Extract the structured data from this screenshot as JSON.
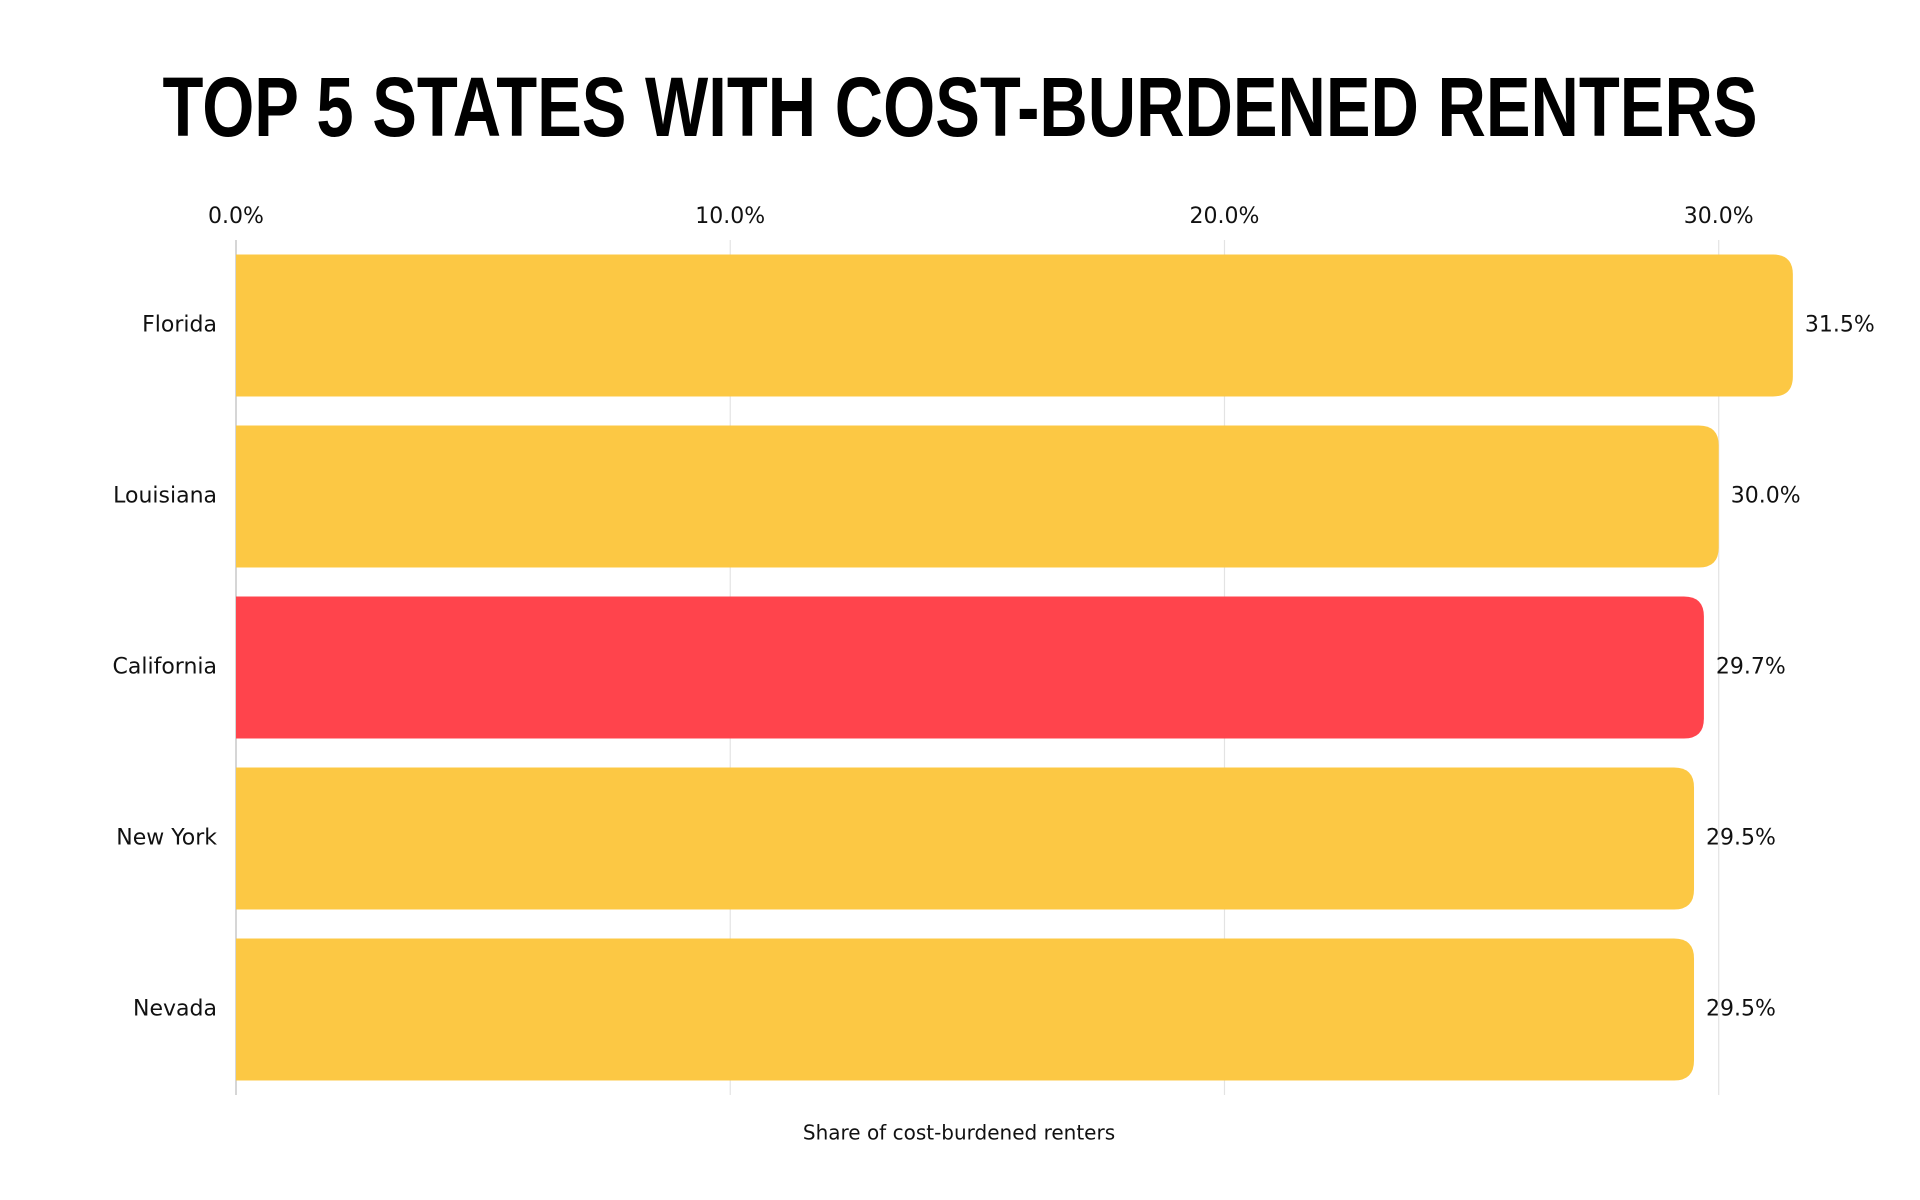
{
  "chart_data": {
    "type": "bar",
    "orientation": "horizontal",
    "title": "TOP 5 STATES WITH COST-BURDENED RENTERS",
    "x_label": "Share of cost-burdened renters",
    "categories": [
      "Florida",
      "Louisiana",
      "California",
      "New York",
      "Nevada"
    ],
    "values": [
      31.5,
      30.0,
      29.7,
      29.5,
      29.5
    ],
    "value_labels": [
      "31.5%",
      "30.0%",
      "29.7%",
      "29.5%",
      "29.5%"
    ],
    "colors": [
      "#fcc844",
      "#fcc844",
      "#ff444c",
      "#fcc844",
      "#fcc844"
    ],
    "xlim": [
      0,
      33
    ],
    "xticks": [
      {
        "value": 0,
        "label": "0.0%"
      },
      {
        "value": 10,
        "label": "10.0%"
      },
      {
        "value": 20,
        "label": "20.0%"
      },
      {
        "value": 30,
        "label": "30.0%"
      }
    ],
    "grid": true
  }
}
